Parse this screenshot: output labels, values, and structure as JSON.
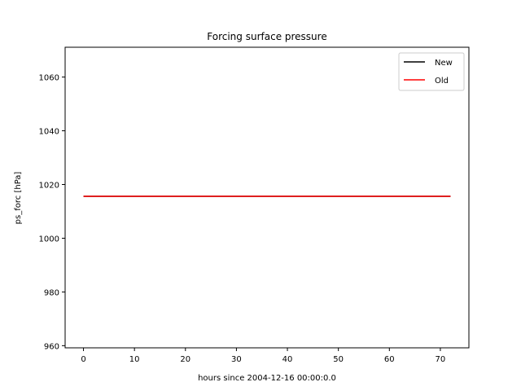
{
  "chart_data": {
    "type": "line",
    "title": "Forcing surface pressure",
    "xlabel": "hours since 2004-12-16 00:00:0.0",
    "ylabel": "ps_forc [hPa]",
    "xlim": [
      -3.6,
      75.6
    ],
    "ylim": [
      959.2,
      1071.1
    ],
    "xticks": [
      0,
      10,
      20,
      30,
      40,
      50,
      60,
      70
    ],
    "yticks": [
      960,
      980,
      1000,
      1020,
      1040,
      1060
    ],
    "grid": false,
    "legend_position": "top-right",
    "series": [
      {
        "name": "New",
        "color": "#000000",
        "x": [
          0,
          72
        ],
        "y": [
          1015.6,
          1015.6
        ]
      },
      {
        "name": "Old",
        "color": "#ff0000",
        "x": [
          0,
          72
        ],
        "y": [
          1015.6,
          1015.6
        ]
      }
    ]
  }
}
